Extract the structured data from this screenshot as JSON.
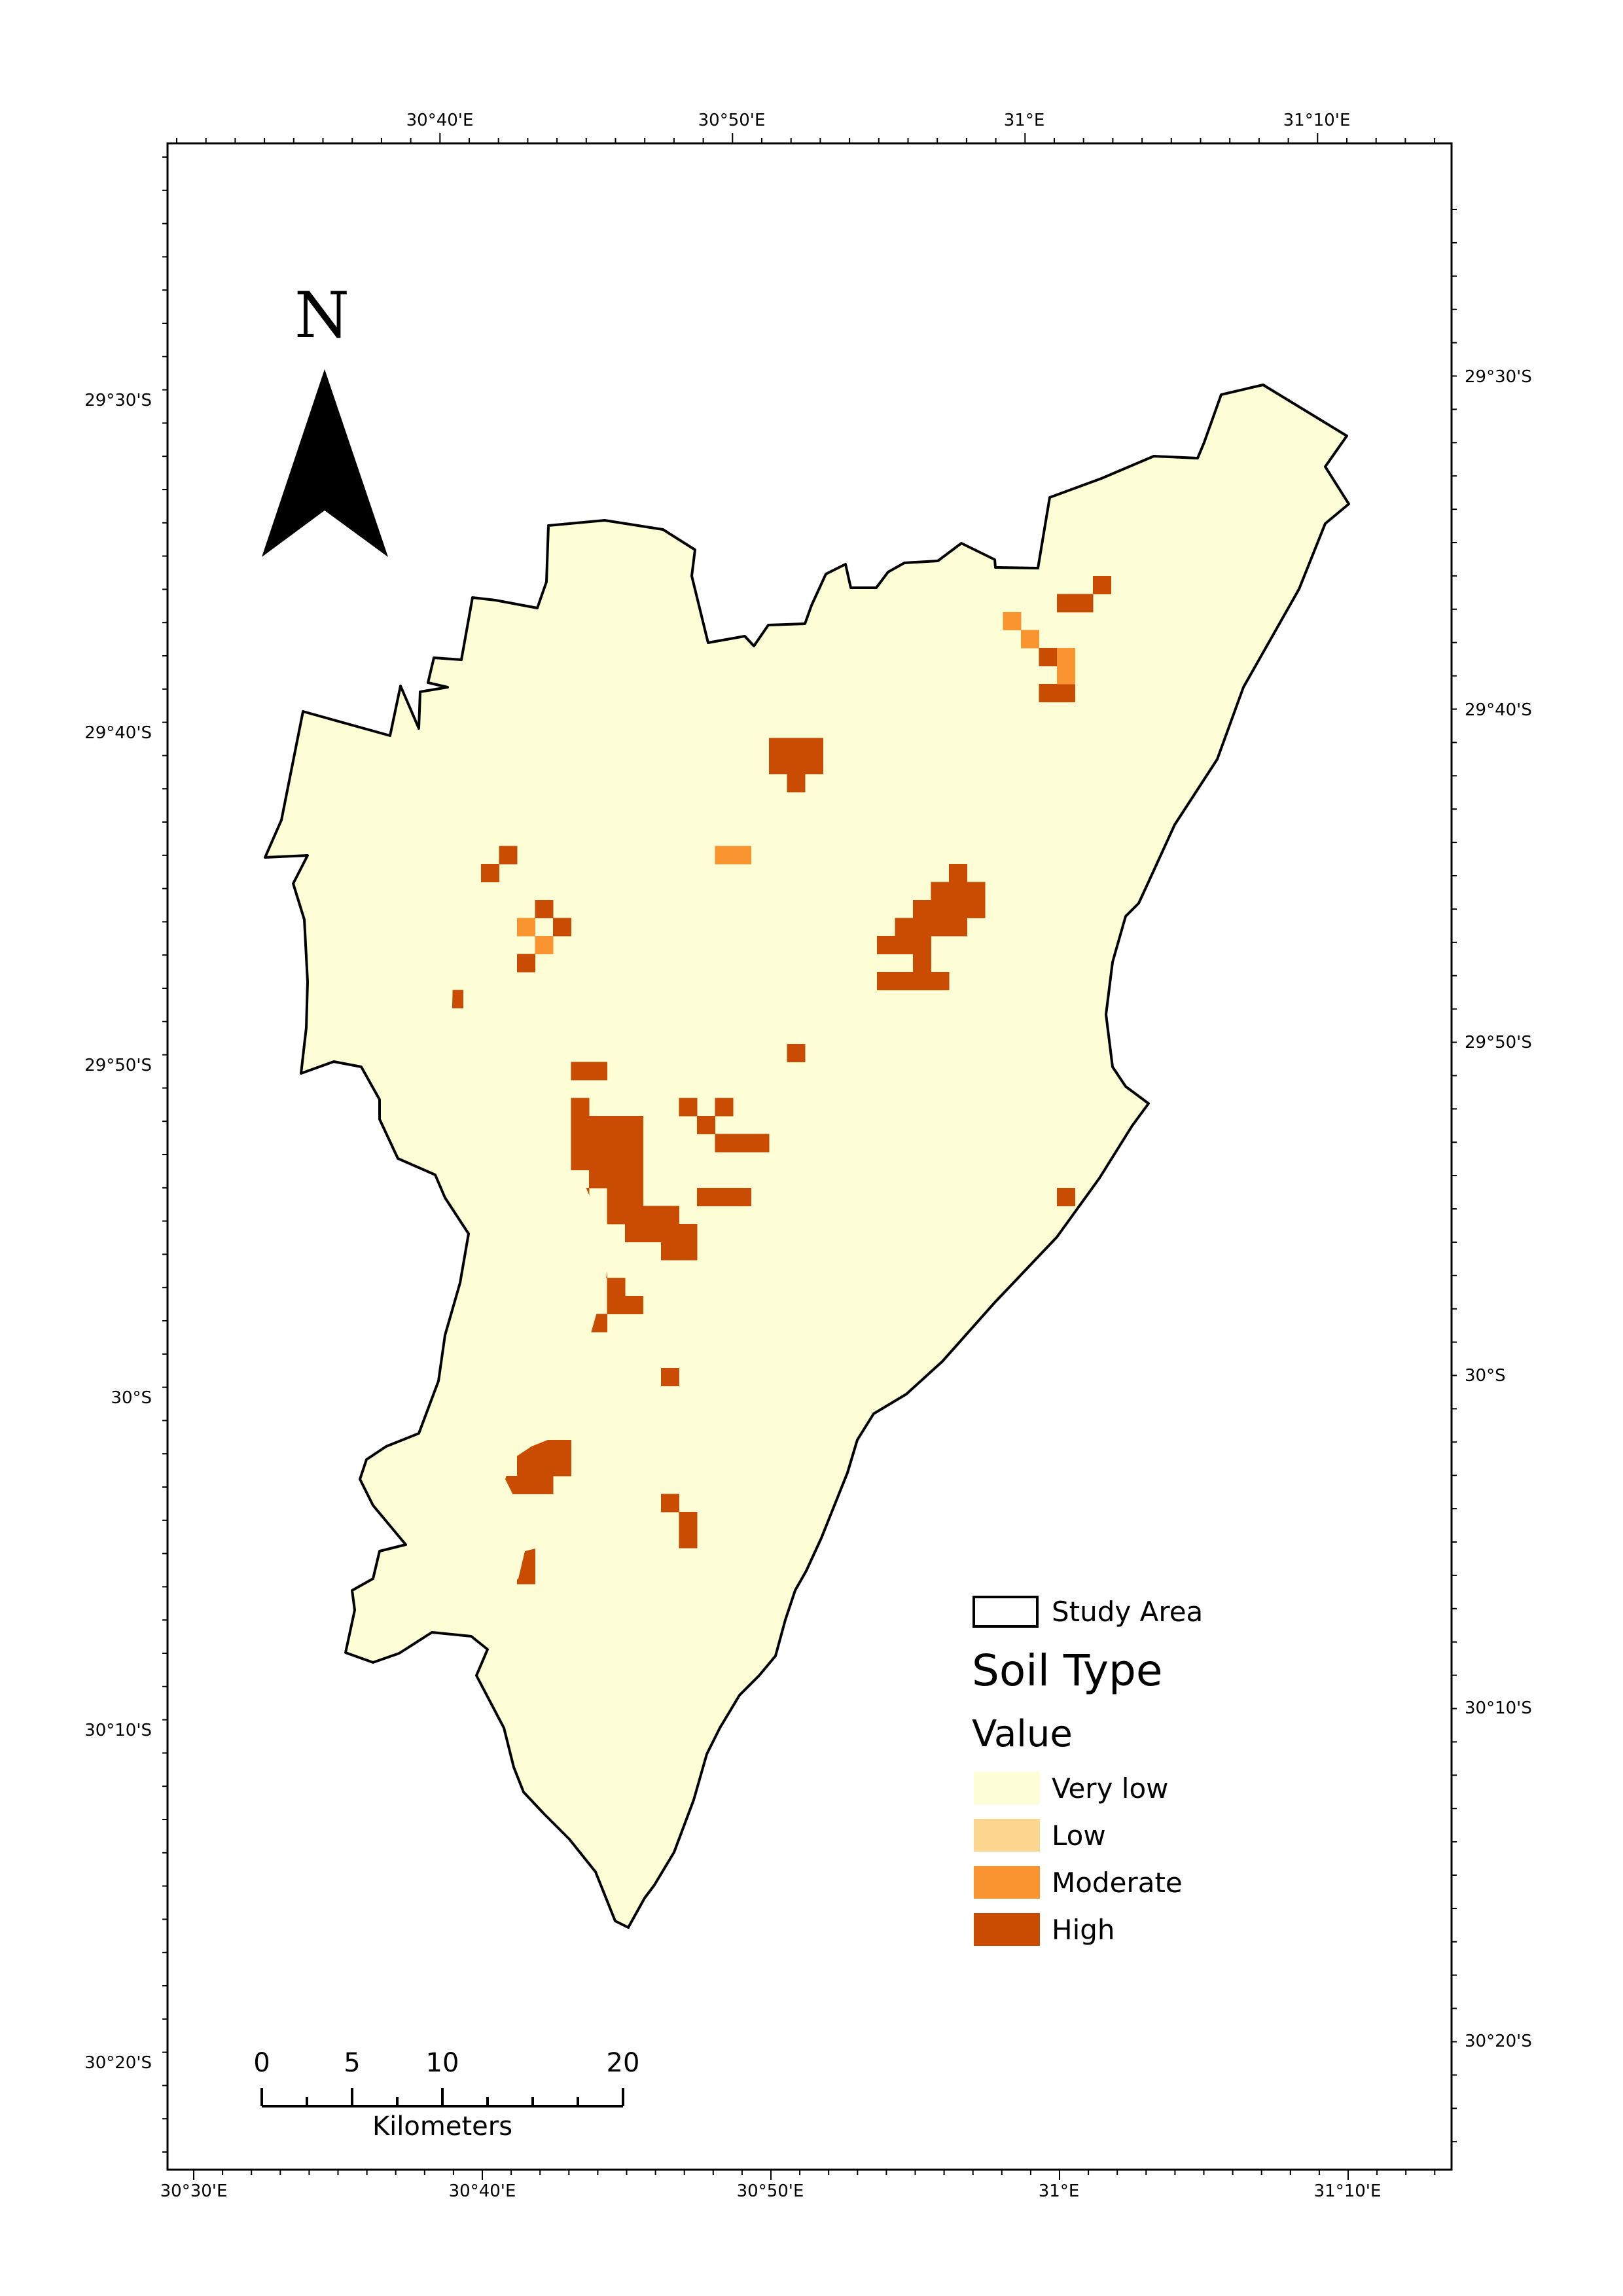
{
  "map": {
    "frame_color": "#000000",
    "background_color": "#fdfed5",
    "boundary_color": "#000000",
    "top_labels": [
      "30°40'E",
      "30°50'E",
      "31°E",
      "31°10'E"
    ],
    "bottom_labels": [
      "30°30'E",
      "30°40'E",
      "30°50'E",
      "31°E",
      "31°10'E"
    ],
    "left_labels": [
      "29°30'S",
      "29°40'S",
      "29°50'S",
      "30°S",
      "30°10'S",
      "30°20'S"
    ],
    "right_labels": [
      "29°30'S",
      "29°40'S",
      "29°50'S",
      "30°S",
      "30°10'S",
      "30°20'S"
    ]
  },
  "north_arrow": {
    "letter": "N",
    "icon": "north-arrow-icon"
  },
  "scale_bar": {
    "labels": [
      "0",
      "5",
      "10",
      "20"
    ],
    "unit": "Kilometers"
  },
  "legend": {
    "study_area_label": "Study Area",
    "title": "Soil Type",
    "subtitle": "Value",
    "classes": [
      {
        "label": "Very low",
        "color": "#fdfed5"
      },
      {
        "label": "Low",
        "color": "#fdd78f"
      },
      {
        "label": "Moderate",
        "color": "#f99430"
      },
      {
        "label": "High",
        "color": "#c94c02"
      }
    ]
  }
}
